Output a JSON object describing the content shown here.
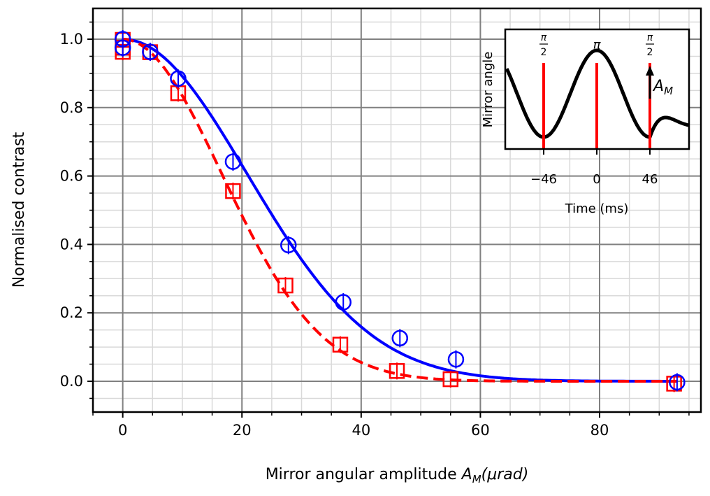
{
  "chart_data": {
    "type": "scatter",
    "xlabel_main": "Mirror angular amplitude",
    "xlabel_symbol": "A",
    "xlabel_sub": "M",
    "xlabel_units": "(μrad)",
    "ylabel": "Normalised contrast",
    "xlim": [
      -5,
      97
    ],
    "ylim": [
      -0.09,
      1.09
    ],
    "x_ticks": [
      "0",
      "20",
      "40",
      "60",
      "80"
    ],
    "y_ticks": [
      "0.0",
      "0.2",
      "0.4",
      "0.6",
      "0.8",
      "1.0"
    ],
    "grid": true,
    "series": [
      {
        "color": "#0000ff",
        "marker": "circle",
        "fit_style": "solid",
        "points": [
          {
            "x": 0,
            "y": 1.0
          },
          {
            "x": 0,
            "y": 0.975
          },
          {
            "x": 4.6,
            "y": 0.963
          },
          {
            "x": 9.3,
            "y": 0.885
          },
          {
            "x": 18.5,
            "y": 0.642
          },
          {
            "x": 27.8,
            "y": 0.398
          },
          {
            "x": 37.0,
            "y": 0.231
          },
          {
            "x": 46.5,
            "y": 0.126
          },
          {
            "x": 55.9,
            "y": 0.064
          },
          {
            "x": 93.0,
            "y": -0.003
          }
        ],
        "fit": {
          "form": "gaussian",
          "width": 29.5
        }
      },
      {
        "color": "#ff0000",
        "marker": "square",
        "fit_style": "dashed",
        "points": [
          {
            "x": 0,
            "y": 0.998
          },
          {
            "x": 0,
            "y": 0.975
          },
          {
            "x": 0,
            "y": 0.963
          },
          {
            "x": 4.6,
            "y": 0.962
          },
          {
            "x": 9.3,
            "y": 0.842
          },
          {
            "x": 18.5,
            "y": 0.556
          },
          {
            "x": 27.3,
            "y": 0.28
          },
          {
            "x": 36.5,
            "y": 0.107
          },
          {
            "x": 46.0,
            "y": 0.03
          },
          {
            "x": 55.0,
            "y": 0.006
          },
          {
            "x": 92.5,
            "y": -0.007
          }
        ],
        "fit": {
          "form": "gaussian",
          "width": 23.5
        }
      }
    ],
    "inset": {
      "xlabel": "Time (ms)",
      "ylabel": "Mirror angle",
      "x_ticks": [
        "−46",
        "0",
        "46"
      ],
      "markers": [
        {
          "x": -46,
          "num": "π",
          "den": "2"
        },
        {
          "x": 0,
          "text": "π"
        },
        {
          "x": 46,
          "num": "π",
          "den": "2"
        }
      ],
      "amplitude_symbol": "A",
      "amplitude_sub": "M",
      "marker_color": "#ff0000",
      "trace_color": "#000000"
    }
  }
}
